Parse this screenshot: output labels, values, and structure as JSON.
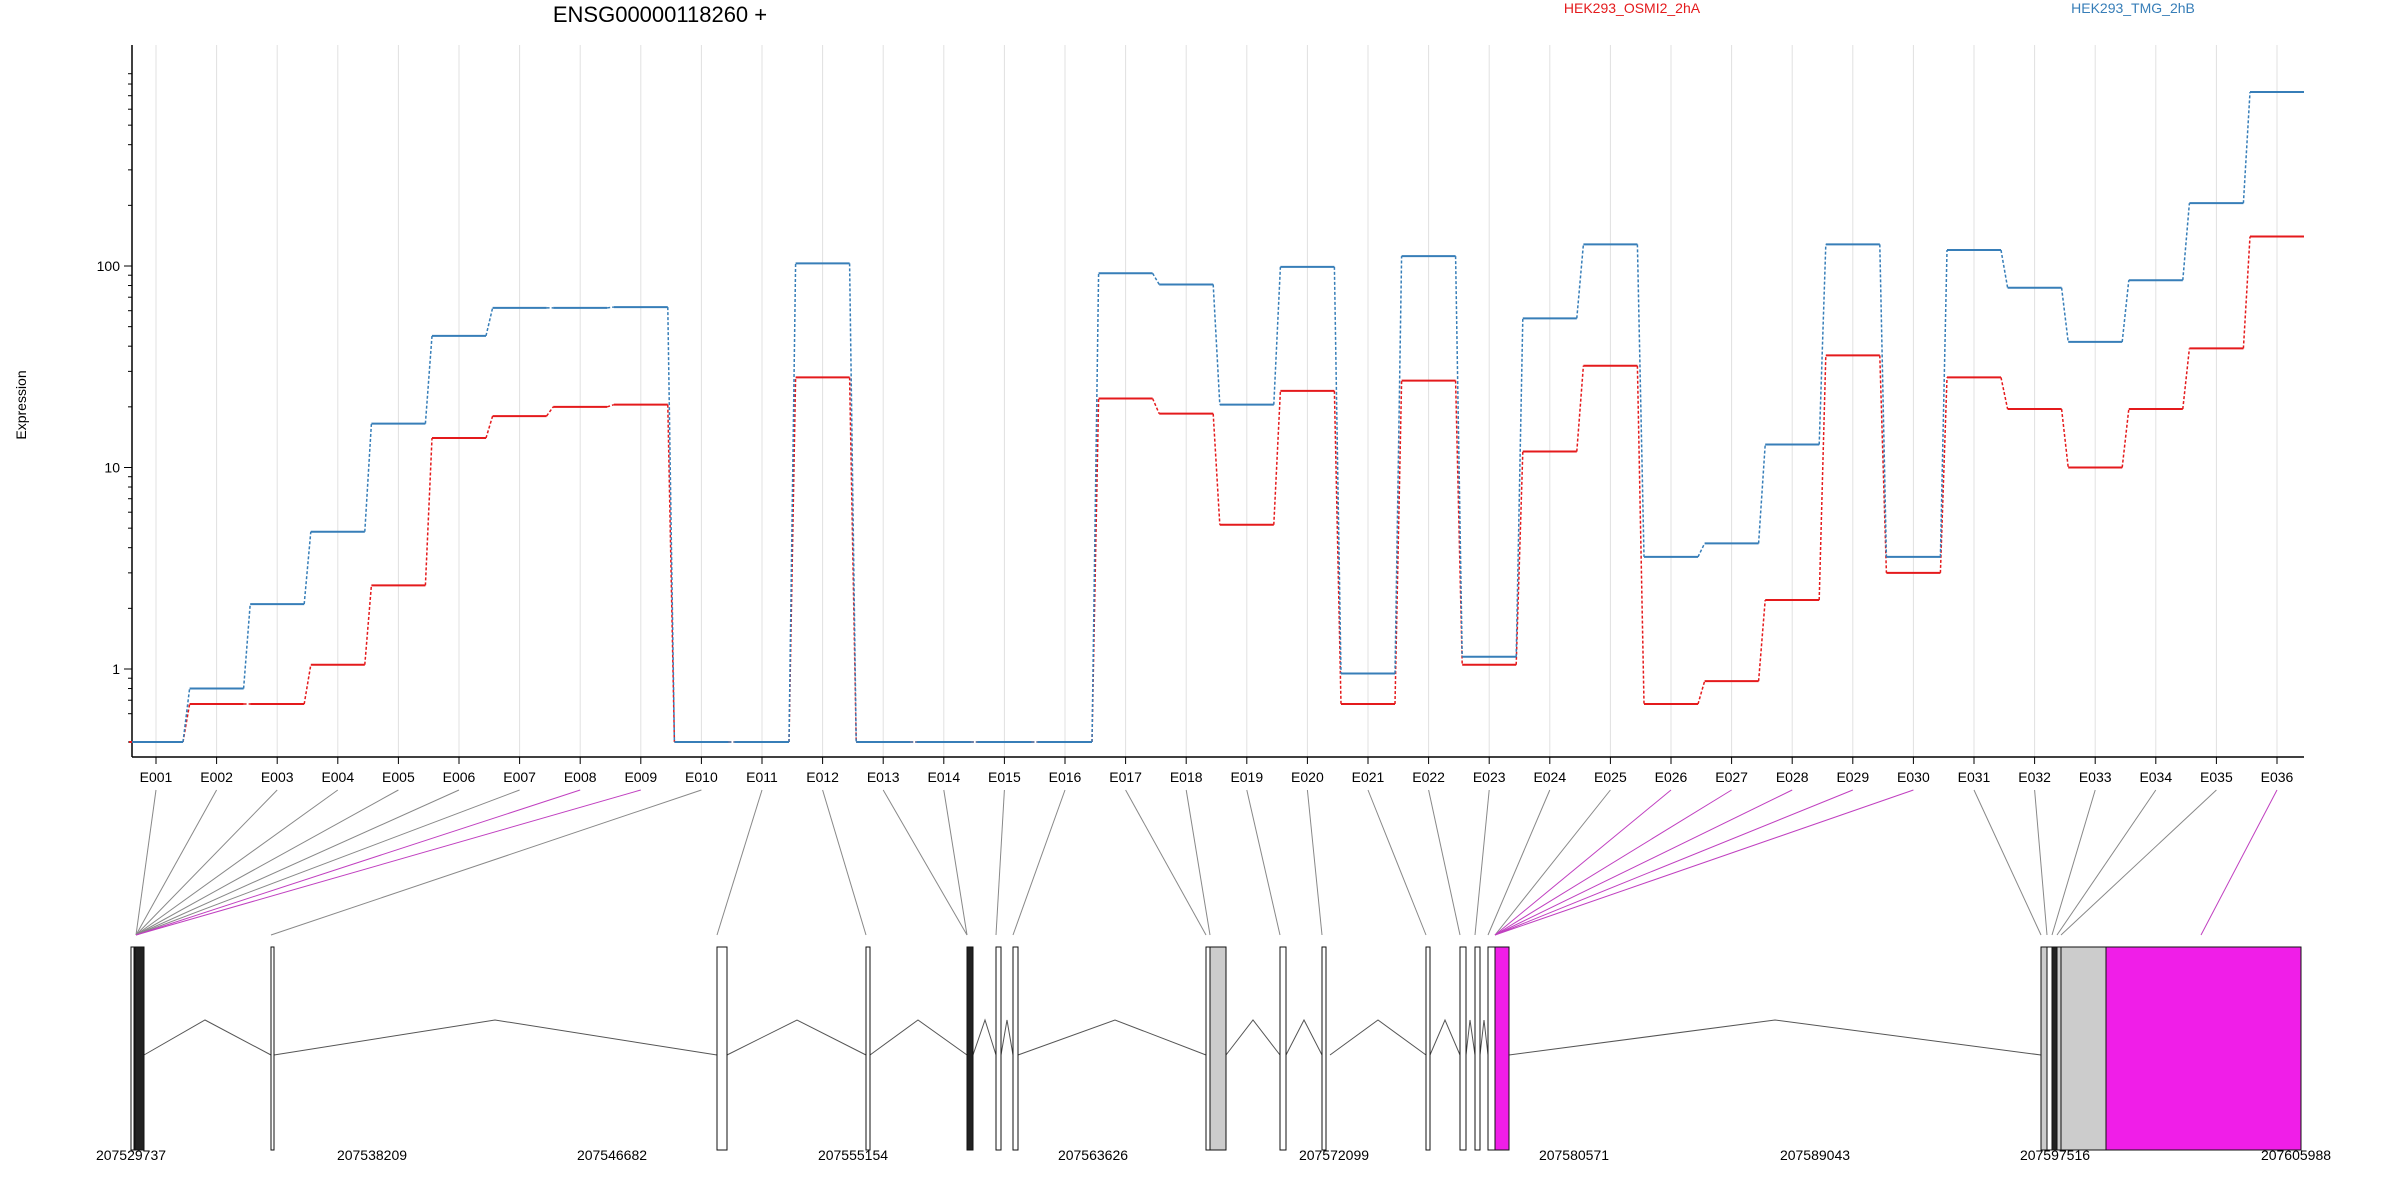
{
  "title": "ENSG00000118260 +",
  "ylabel": "Expression",
  "colors": {
    "OSMI2": "#e41a1c",
    "TMG": "#377eb8",
    "magenta": "#f01ee8",
    "grey": "#cccccc",
    "axis": "#000000",
    "grid": "#e0e0e0"
  },
  "chart_data": {
    "type": "line",
    "title": "ENSG00000118260 +",
    "ylabel": "Expression",
    "yscale": "log",
    "yticks": [
      1,
      10,
      100
    ],
    "ytick_labels": [
      "1",
      "10",
      "100"
    ],
    "categories": [
      "E001",
      "E002",
      "E003",
      "E004",
      "E005",
      "E006",
      "E007",
      "E008",
      "E009",
      "E010",
      "E011",
      "E012",
      "E013",
      "E014",
      "E015",
      "E016",
      "E017",
      "E018",
      "E019",
      "E020",
      "E021",
      "E022",
      "E023",
      "E024",
      "E025",
      "E026",
      "E027",
      "E028",
      "E029",
      "E030",
      "E031",
      "E032",
      "E033",
      "E034",
      "E035",
      "E036"
    ],
    "series": [
      {
        "name": "HEK293_OSMI2_2hA",
        "color": "#e41a1c",
        "values": [
          0.5,
          0.67,
          0.67,
          1.05,
          2.6,
          14,
          18,
          20,
          20.5,
          0.5,
          0.5,
          28,
          0.5,
          0.5,
          0.5,
          0.5,
          22,
          18.5,
          5.2,
          24,
          0.67,
          27,
          1.05,
          12,
          32,
          0.67,
          0.87,
          2.2,
          36,
          3,
          28,
          19.5,
          10,
          19.5,
          39,
          140
        ]
      },
      {
        "name": "HEK293_TMG_2hB",
        "color": "#377eb8",
        "values": [
          0.5,
          0.8,
          2.1,
          4.8,
          16.5,
          45,
          62,
          62,
          62.5,
          0.5,
          0.5,
          103,
          0.5,
          0.5,
          0.5,
          0.5,
          92,
          81,
          20.5,
          99,
          0.95,
          112,
          1.15,
          55,
          128,
          3.6,
          4.2,
          13,
          128,
          3.6,
          120,
          78,
          42,
          85,
          205,
          730
        ]
      }
    ],
    "genomic_ticks": [
      "207529737",
      "207538209",
      "207546682",
      "207555154",
      "207563626",
      "207572099",
      "207580571",
      "207589043",
      "207597516",
      "207605988"
    ]
  }
}
